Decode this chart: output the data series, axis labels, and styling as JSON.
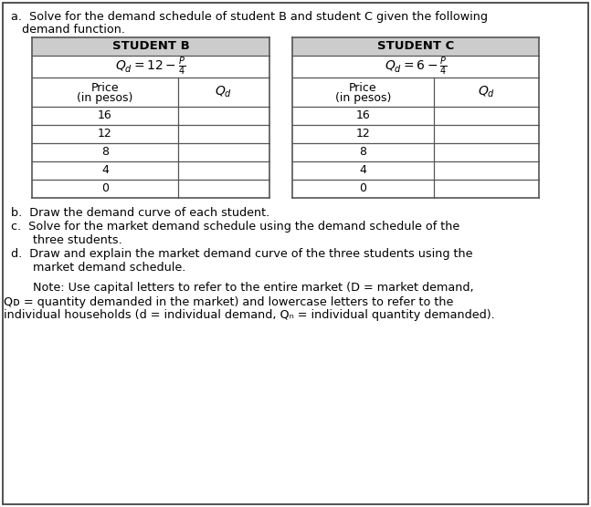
{
  "bg": "#ffffff",
  "border_color": "#000000",
  "lc": "#555555",
  "fs": 9.2,
  "fst": 9.0,
  "prices": [
    "16",
    "12",
    "8",
    "4",
    "0"
  ],
  "student_b_title": "STUDENT B",
  "student_c_title": "STUDENT C",
  "header_gray": "#bbbbbb",
  "note_b": "b.  Draw the demand curve of each student.",
  "note_c1": "c.  Solve for the market demand schedule using the demand schedule of the",
  "note_c2": "      three students.",
  "note_d1": "d.  Draw and explain the market demand curve of the three students using the",
  "note_d2": "      market demand schedule.",
  "note_n1": "      Note: Use capital letters to refer to the entire market (D = market demand,",
  "note_n2": "Qᴅ = quantity demanded in the market) and lowercase letters to refer to the",
  "note_n3": "individual households (d = individual demand, Qₙ = individual quantity demanded)."
}
